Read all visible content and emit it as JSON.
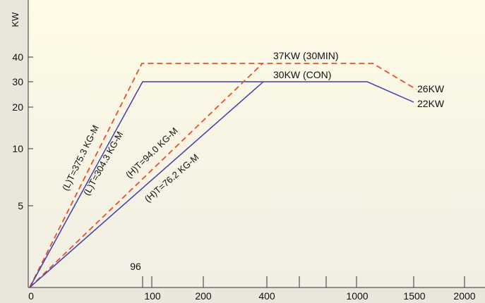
{
  "chart_data": {
    "type": "line",
    "ylabel": "KW",
    "y_ticks": [
      "40",
      "30",
      "20",
      "10",
      "5"
    ],
    "x_ticks": [
      "0",
      "100",
      "200",
      "400",
      "1000",
      "1500",
      "2000"
    ],
    "x_extra_ticks": [
      "",
      ""
    ],
    "x_marker_label": "96",
    "series": [
      {
        "name": "37KW (30MIN)",
        "style": "dashed",
        "color": "#e8502a",
        "x": [
          0,
          90,
          1100,
          1500
        ],
        "y": [
          0,
          37,
          37,
          26
        ]
      },
      {
        "name": "30KW (CON)",
        "style": "solid",
        "color": "#3b3fa8",
        "x": [
          0,
          96,
          1100,
          1500
        ],
        "y": [
          0,
          30,
          30,
          22
        ]
      },
      {
        "name": "",
        "style": "dashed",
        "color": "#e8502a",
        "x": [
          0,
          380,
          1100
        ],
        "y": [
          0,
          37,
          37
        ]
      },
      {
        "name": "",
        "style": "solid",
        "color": "#3b3fa8",
        "x": [
          0,
          380,
          1100
        ],
        "y": [
          0,
          30,
          30
        ]
      }
    ],
    "annotations": [
      {
        "text": "37KW (30MIN)"
      },
      {
        "text": "30KW (CON)"
      },
      {
        "text": "26KW"
      },
      {
        "text": "22KW"
      },
      {
        "text": "(L)T=375.3 KG-M"
      },
      {
        "text": "(L)T=304.3 KG-M"
      },
      {
        "text": "(H)T=94.0 KG-M"
      },
      {
        "text": "(H)T=76.2 KG-M"
      }
    ],
    "colors": {
      "background_top": "#fffbe6",
      "background_bottom": "#f3f0e5",
      "dashed": "#e8502a",
      "solid": "#3b3fa8"
    }
  }
}
